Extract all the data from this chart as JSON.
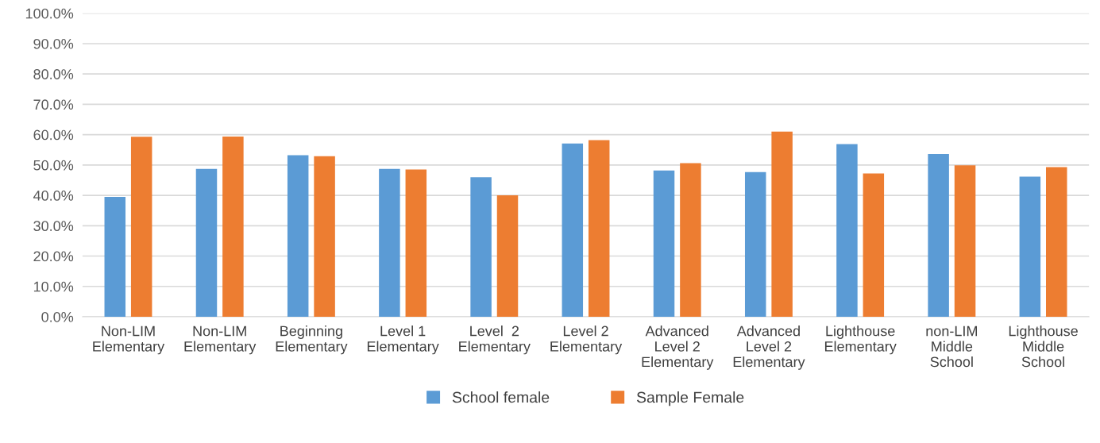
{
  "chart_data": {
    "type": "bar",
    "categories": [
      "Non-LIM\nElementary",
      "Non-LIM\nElementary",
      "Beginning\nElementary",
      "Level 1\nElementary",
      "Level  2\nElementary",
      "Level 2\nElementary",
      "Advanced\nLevel 2\nElementary",
      "Advanced\nLevel 2\nElementary",
      "Lighthouse\nElementary",
      "non-LIM\nMiddle\nSchool",
      "Lighthouse\nMiddle\nSchool"
    ],
    "series": [
      {
        "name": "School female",
        "color": "#5b9bd5",
        "values": [
          39.5,
          48.7,
          53.2,
          48.7,
          46.0,
          57.1,
          48.2,
          47.7,
          56.9,
          53.6,
          46.2
        ]
      },
      {
        "name": "Sample Female",
        "color": "#ed7d31",
        "values": [
          59.3,
          59.4,
          52.9,
          48.5,
          40.0,
          58.2,
          50.6,
          61.0,
          47.2,
          49.9,
          49.3
        ]
      }
    ],
    "ylim": [
      0,
      100
    ],
    "yticks": [
      {
        "value": 0,
        "label": "0.0%"
      },
      {
        "value": 10,
        "label": "10.0%"
      },
      {
        "value": 20,
        "label": "20.0%"
      },
      {
        "value": 30,
        "label": "30.0%"
      },
      {
        "value": 40,
        "label": "40.0%"
      },
      {
        "value": 50,
        "label": "50.0%"
      },
      {
        "value": 60,
        "label": "60.0%"
      },
      {
        "value": 70,
        "label": "70.0%"
      },
      {
        "value": 80,
        "label": "80.0%"
      },
      {
        "value": 90,
        "label": "90.0%"
      },
      {
        "value": 100,
        "label": "100.0%"
      }
    ],
    "grid": "y",
    "legend": "bottom"
  }
}
